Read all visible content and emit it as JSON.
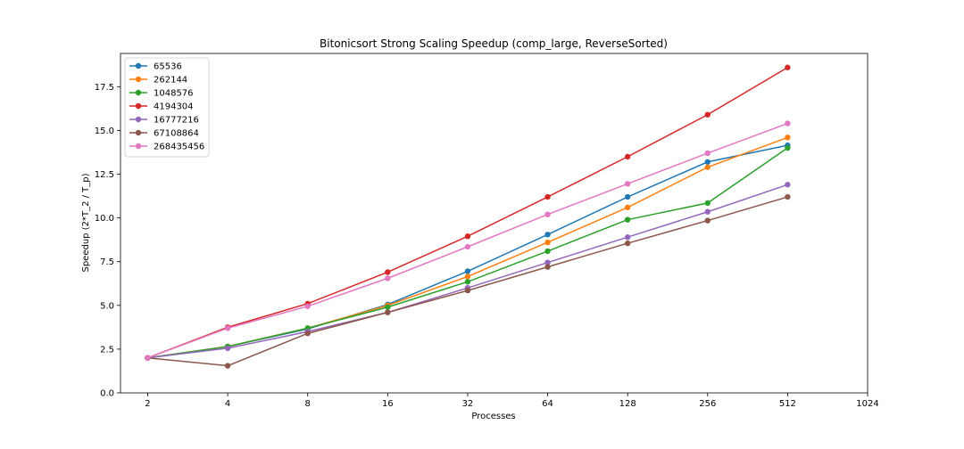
{
  "chart_data": {
    "type": "line",
    "title": "Bitonicsort Strong Scaling Speedup (comp_large, ReverseSorted)",
    "xlabel": "Processes",
    "ylabel": "Speedup (2*T_2 / T_p)",
    "x_scale": "log2",
    "x": [
      2,
      4,
      8,
      16,
      32,
      64,
      128,
      256,
      512
    ],
    "x_ticks": [
      "2",
      "4",
      "8",
      "16",
      "32",
      "64",
      "128",
      "256",
      "512",
      "1024"
    ],
    "xlim": [
      1.58,
      1024
    ],
    "ylim": [
      0,
      19.4
    ],
    "y_ticks": [
      "0.0",
      "2.5",
      "5.0",
      "7.5",
      "10.0",
      "12.5",
      "15.0",
      "17.5"
    ],
    "grid": false,
    "legend_position": "top-left",
    "series": [
      {
        "name": "65536",
        "color": "#1f77b4",
        "values": [
          2.0,
          2.65,
          3.65,
          5.05,
          6.95,
          9.05,
          11.2,
          13.2,
          14.15
        ]
      },
      {
        "name": "262144",
        "color": "#ff7f0e",
        "values": [
          2.0,
          2.65,
          3.7,
          5.0,
          6.65,
          8.6,
          10.6,
          12.9,
          14.6
        ]
      },
      {
        "name": "1048576",
        "color": "#2ca02c",
        "values": [
          2.0,
          2.65,
          3.7,
          4.9,
          6.35,
          8.1,
          9.9,
          10.85,
          14.0
        ]
      },
      {
        "name": "4194304",
        "color": "#d62728",
        "values": [
          2.0,
          3.75,
          5.1,
          6.9,
          8.95,
          11.2,
          13.5,
          15.9,
          18.6
        ]
      },
      {
        "name": "16777216",
        "color": "#9467bd",
        "values": [
          2.0,
          2.55,
          3.5,
          4.6,
          6.0,
          7.45,
          8.9,
          10.35,
          11.9
        ]
      },
      {
        "name": "67108864",
        "color": "#8c564b",
        "values": [
          2.0,
          1.55,
          3.4,
          4.6,
          5.85,
          7.2,
          8.55,
          9.85,
          11.2
        ]
      },
      {
        "name": "268435456",
        "color": "#e377c2",
        "values": [
          2.0,
          3.7,
          4.95,
          6.55,
          8.35,
          10.2,
          11.95,
          13.7,
          15.4
        ]
      }
    ]
  }
}
